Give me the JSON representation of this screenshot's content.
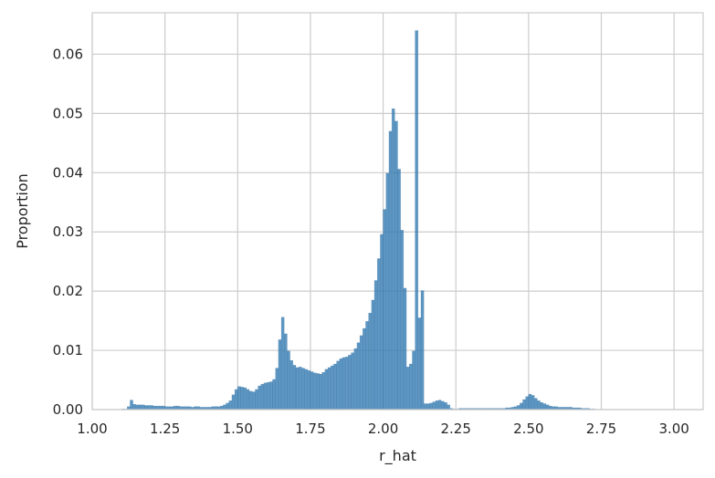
{
  "chart_data": {
    "type": "bar",
    "xlabel": "r_hat",
    "ylabel": "Proportion",
    "xlim": [
      1.0,
      3.1
    ],
    "ylim": [
      0.0,
      0.067
    ],
    "x_ticks": [
      1.0,
      1.25,
      1.5,
      1.75,
      2.0,
      2.25,
      2.5,
      2.75,
      3.0
    ],
    "x_tick_labels": [
      "1.00",
      "1.25",
      "1.50",
      "1.75",
      "2.00",
      "2.25",
      "2.50",
      "2.75",
      "3.00"
    ],
    "y_ticks": [
      0.0,
      0.01,
      0.02,
      0.03,
      0.04,
      0.05,
      0.06
    ],
    "y_tick_labels": [
      "0.00",
      "0.01",
      "0.02",
      "0.03",
      "0.04",
      "0.05",
      "0.06"
    ],
    "grid": true,
    "bar_color": "#3a7fb5",
    "bin_start": 1.1,
    "bin_width": 0.01,
    "values": [
      0.0001,
      0.0001,
      0.0005,
      0.0016,
      0.0009,
      0.0008,
      0.0008,
      0.0008,
      0.0007,
      0.0007,
      0.0007,
      0.0006,
      0.0006,
      0.0006,
      0.0006,
      0.0005,
      0.0005,
      0.0005,
      0.0006,
      0.0006,
      0.0005,
      0.0005,
      0.0005,
      0.0005,
      0.0004,
      0.0005,
      0.0005,
      0.0004,
      0.0004,
      0.0004,
      0.0004,
      0.0005,
      0.0005,
      0.0005,
      0.0006,
      0.0008,
      0.0011,
      0.0015,
      0.0025,
      0.0034,
      0.0039,
      0.0038,
      0.0037,
      0.0034,
      0.0031,
      0.003,
      0.0034,
      0.004,
      0.0043,
      0.0045,
      0.0046,
      0.0047,
      0.0051,
      0.007,
      0.0118,
      0.0156,
      0.0128,
      0.0099,
      0.0083,
      0.0075,
      0.0071,
      0.0072,
      0.007,
      0.0068,
      0.0066,
      0.0064,
      0.0062,
      0.0061,
      0.006,
      0.0063,
      0.0068,
      0.0071,
      0.0074,
      0.0077,
      0.0082,
      0.0086,
      0.0088,
      0.0089,
      0.0092,
      0.0096,
      0.0103,
      0.0113,
      0.0125,
      0.0137,
      0.0149,
      0.0163,
      0.0185,
      0.0218,
      0.0255,
      0.0296,
      0.0338,
      0.0399,
      0.047,
      0.0508,
      0.0487,
      0.0406,
      0.0303,
      0.0205,
      0.0072,
      0.0077,
      0.0099,
      0.064,
      0.0155,
      0.0201,
      0.001,
      0.001,
      0.0011,
      0.0013,
      0.0015,
      0.0016,
      0.0014,
      0.0012,
      0.0008,
      0.0002,
      0.0001,
      0.0001,
      0.0002,
      0.0002,
      0.0002,
      0.0002,
      0.0002,
      0.0002,
      0.0002,
      0.0002,
      0.0002,
      0.0002,
      0.0002,
      0.0002,
      0.0002,
      0.0002,
      0.0002,
      0.0002,
      0.0003,
      0.0003,
      0.0004,
      0.0005,
      0.0007,
      0.0011,
      0.0017,
      0.0022,
      0.0026,
      0.0024,
      0.0019,
      0.0015,
      0.0012,
      0.001,
      0.0008,
      0.0006,
      0.0005,
      0.0005,
      0.0004,
      0.0004,
      0.0004,
      0.0004,
      0.0004,
      0.0003,
      0.0003,
      0.0003,
      0.0002,
      0.0002,
      0.0002,
      0.0001,
      0.0001
    ]
  }
}
